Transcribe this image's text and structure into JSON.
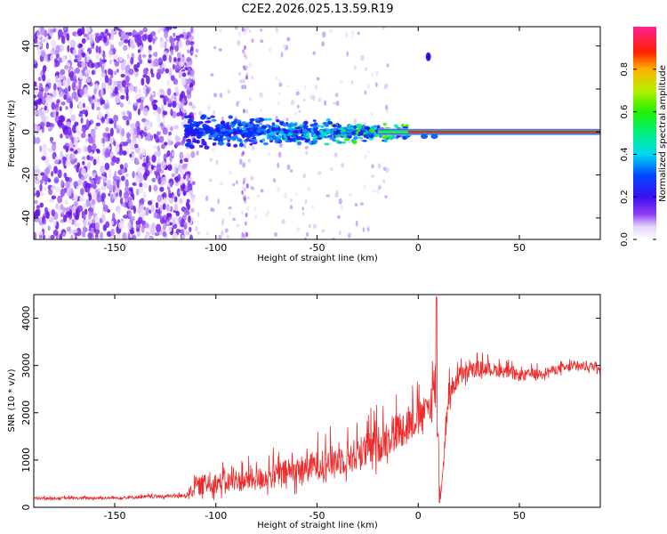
{
  "title": "C2E2.2026.025.13.59.R19",
  "colors": {
    "snr_line": "#ee2b2b",
    "spectrum_noise": "#7a2cf0",
    "ridge_core": "#e8202a"
  },
  "chart_data": [
    {
      "type": "heatmap",
      "name": "spectrogram",
      "xlabel": "Height of straight line (km)",
      "ylabel": "Frequency (Hz)",
      "xlim": [
        -190,
        90
      ],
      "ylim": [
        -50,
        49
      ],
      "xticks": [
        -150,
        -100,
        -50,
        0,
        50
      ],
      "xtick_labels": [
        "-150",
        "-100",
        "-50",
        "0",
        "50"
      ],
      "yticks": [
        -40,
        -20,
        0,
        20,
        40
      ],
      "ytick_labels": [
        "-40",
        "-20",
        "0",
        "20",
        "40"
      ],
      "ridge_frequency_hz": 0,
      "noise_region_km": [
        -190,
        -115
      ],
      "turbulent_region_km": [
        -115,
        -5
      ],
      "stable_region_km": [
        -5,
        90
      ],
      "isolated_blob": {
        "x_km": 5,
        "freq_hz": 35
      },
      "colorbar": {
        "label": "Normalized spectral amplitude",
        "range": [
          0,
          1
        ],
        "ticks": [
          0.0,
          0.2,
          0.4,
          0.6,
          0.8
        ],
        "tick_labels": [
          "0.0",
          "0.2",
          "0.4",
          "0.6",
          "0.8"
        ],
        "colormap": "rainbow (white→purple→blue→cyan→green→yellow→red→magenta)"
      }
    },
    {
      "type": "line",
      "name": "snr",
      "xlabel": "Height of straight line (km)",
      "ylabel": "SNR (10 * v/v)",
      "xlim": [
        -190,
        90
      ],
      "ylim": [
        0,
        4500
      ],
      "xticks": [
        -150,
        -100,
        -50,
        0,
        50
      ],
      "xtick_labels": [
        "-150",
        "-100",
        "-50",
        "0",
        "50"
      ],
      "yticks": [
        0,
        1000,
        2000,
        3000,
        4000
      ],
      "ytick_labels": [
        "0",
        "1000",
        "2000",
        "3000",
        "4000"
      ],
      "series": [
        {
          "name": "SNR",
          "envelope_x": [
            -190,
            -150,
            -115,
            -110,
            -100,
            -90,
            -80,
            -70,
            -60,
            -50,
            -40,
            -30,
            -20,
            -10,
            0,
            5,
            9,
            11,
            15,
            20,
            30,
            40,
            50,
            60,
            70,
            80,
            90
          ],
          "envelope_mean": [
            180,
            190,
            230,
            380,
            450,
            480,
            520,
            600,
            680,
            800,
            900,
            1000,
            1200,
            1500,
            1800,
            2000,
            2300,
            150,
            2300,
            2700,
            2900,
            2850,
            2750,
            2800,
            2900,
            2950,
            2950
          ],
          "envelope_amp": [
            70,
            70,
            110,
            500,
            550,
            550,
            600,
            700,
            750,
            800,
            850,
            900,
            1000,
            1000,
            900,
            700,
            2000,
            100,
            700,
            500,
            400,
            350,
            300,
            250,
            250,
            250,
            250
          ],
          "features": [
            {
              "x_km": 9,
              "y": 4450,
              "desc": "spike to top"
            },
            {
              "x_km": 10.5,
              "y": 100,
              "desc": "sharp dip"
            }
          ]
        }
      ]
    }
  ]
}
